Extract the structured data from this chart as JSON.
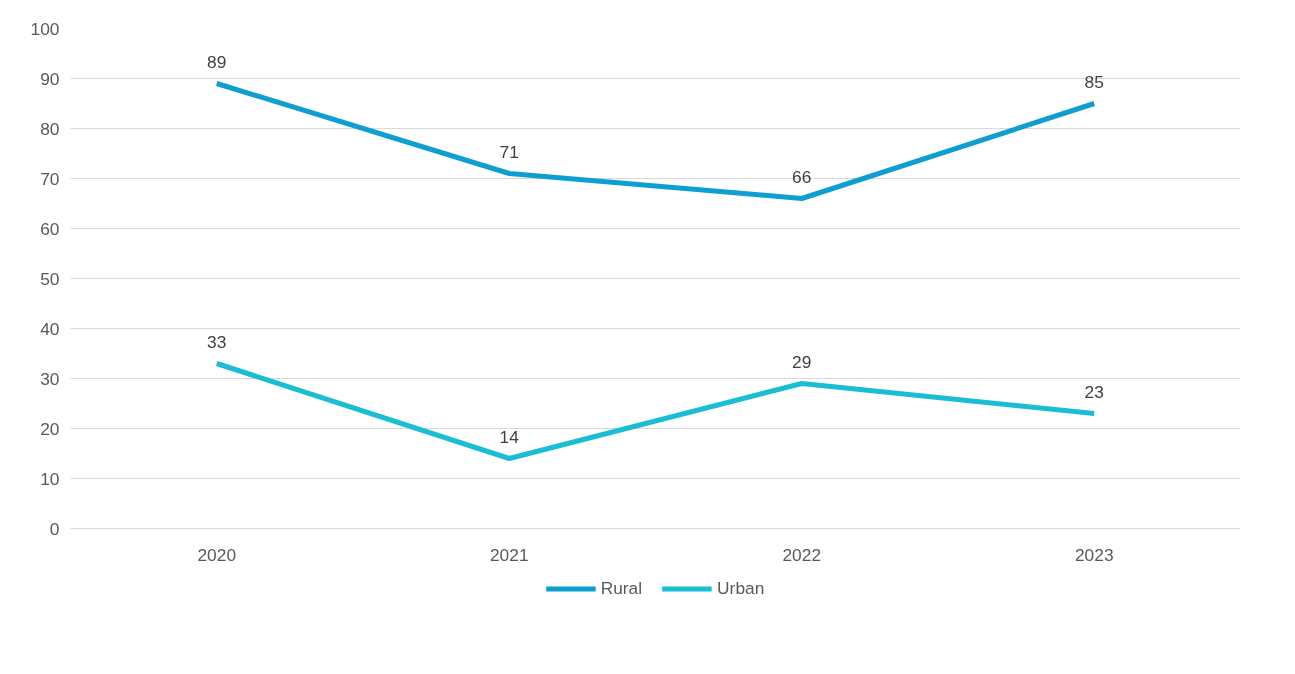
{
  "chart_data": {
    "type": "line",
    "categories": [
      "2020",
      "2021",
      "2022",
      "2023"
    ],
    "series": [
      {
        "name": "Rural",
        "color": "#0e9ed1",
        "values": [
          89,
          71,
          66,
          85
        ]
      },
      {
        "name": "Urban",
        "color": "#19bdd4",
        "values": [
          33,
          14,
          29,
          23
        ]
      }
    ],
    "ylim": [
      0,
      100
    ],
    "yticks": [
      0,
      10,
      20,
      30,
      40,
      50,
      60,
      70,
      80,
      90,
      100
    ],
    "grid": "y",
    "legend": "bottom",
    "data_labels": true,
    "marker": "none",
    "line_style": "solid"
  }
}
